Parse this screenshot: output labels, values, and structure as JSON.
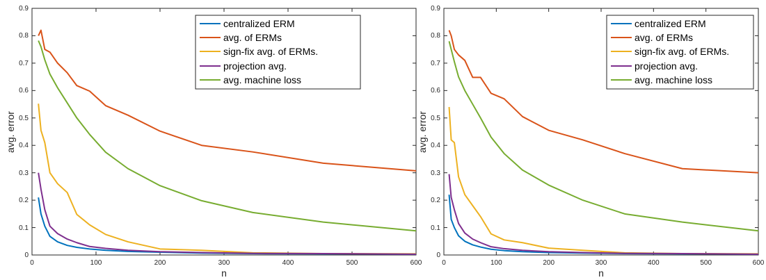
{
  "colors": {
    "axis": "#262626",
    "centralized_erm": "#0072BD",
    "avg_of_erms": "#D95319",
    "sign_fix": "#EDB120",
    "projection": "#7E2F8E",
    "avg_machine_loss": "#77AC30"
  },
  "chart_data": [
    {
      "type": "line",
      "xlabel": "n",
      "ylabel": "avg. error",
      "xlim": [
        0,
        600
      ],
      "ylim": [
        0,
        0.9
      ],
      "xticks": [
        "0",
        "100",
        "200",
        "300",
        "400",
        "500",
        "600"
      ],
      "yticks": [
        "0",
        "0.1",
        "0.2",
        "0.3",
        "0.4",
        "0.5",
        "0.6",
        "0.7",
        "0.8",
        "0.9"
      ],
      "legend_position": "top-right",
      "grid": false,
      "series": [
        {
          "name": "centralized ERM",
          "color_key": "centralized_erm",
          "x": [
            10,
            14,
            20,
            28,
            40,
            55,
            70,
            90,
            115,
            150,
            200,
            265,
            345,
            455,
            600
          ],
          "y": [
            0.21,
            0.15,
            0.105,
            0.068,
            0.048,
            0.035,
            0.028,
            0.022,
            0.017,
            0.013,
            0.01,
            0.007,
            0.005,
            0.004,
            0.003
          ]
        },
        {
          "name": "avg. of ERMs",
          "color_key": "avg_of_erms",
          "x": [
            10,
            14,
            20,
            28,
            40,
            55,
            70,
            90,
            115,
            150,
            200,
            265,
            345,
            455,
            600
          ],
          "y": [
            0.8,
            0.82,
            0.75,
            0.74,
            0.7,
            0.665,
            0.618,
            0.598,
            0.545,
            0.51,
            0.452,
            0.4,
            0.376,
            0.335,
            0.307
          ]
        },
        {
          "name": "sign-fix avg. of ERMs.",
          "color_key": "sign_fix",
          "x": [
            10,
            14,
            20,
            28,
            40,
            55,
            70,
            90,
            115,
            150,
            200,
            265,
            345,
            455,
            600
          ],
          "y": [
            0.552,
            0.455,
            0.41,
            0.3,
            0.26,
            0.228,
            0.148,
            0.11,
            0.075,
            0.048,
            0.022,
            0.017,
            0.008,
            0.005,
            0.004
          ]
        },
        {
          "name": "projection avg.",
          "color_key": "projection",
          "x": [
            10,
            14,
            20,
            28,
            40,
            55,
            70,
            90,
            115,
            150,
            200,
            265,
            345,
            455,
            600
          ],
          "y": [
            0.3,
            0.24,
            0.165,
            0.105,
            0.078,
            0.058,
            0.045,
            0.031,
            0.024,
            0.017,
            0.012,
            0.009,
            0.006,
            0.005,
            0.003
          ]
        },
        {
          "name": "avg. machine loss",
          "color_key": "avg_machine_loss",
          "x": [
            10,
            14,
            20,
            28,
            40,
            55,
            70,
            90,
            115,
            150,
            200,
            265,
            345,
            455,
            600
          ],
          "y": [
            0.782,
            0.76,
            0.712,
            0.66,
            0.61,
            0.555,
            0.5,
            0.44,
            0.375,
            0.315,
            0.253,
            0.198,
            0.155,
            0.12,
            0.088
          ]
        }
      ]
    },
    {
      "type": "line",
      "xlabel": "n",
      "ylabel": "avg. error",
      "xlim": [
        0,
        600
      ],
      "ylim": [
        0,
        0.9
      ],
      "xticks": [
        "0",
        "100",
        "200",
        "300",
        "400",
        "500",
        "600"
      ],
      "yticks": [
        "0",
        "0.1",
        "0.2",
        "0.3",
        "0.4",
        "0.5",
        "0.6",
        "0.7",
        "0.8",
        "0.9"
      ],
      "legend_position": "top-right",
      "grid": false,
      "series": [
        {
          "name": "centralized ERM",
          "color_key": "centralized_erm",
          "x": [
            10,
            14,
            20,
            28,
            40,
            55,
            70,
            90,
            115,
            150,
            200,
            265,
            345,
            455,
            600
          ],
          "y": [
            0.22,
            0.13,
            0.1,
            0.07,
            0.05,
            0.037,
            0.029,
            0.021,
            0.016,
            0.012,
            0.009,
            0.007,
            0.005,
            0.004,
            0.003
          ]
        },
        {
          "name": "avg. of ERMs",
          "color_key": "avg_of_erms",
          "x": [
            10,
            14,
            20,
            28,
            40,
            55,
            70,
            90,
            115,
            150,
            200,
            265,
            345,
            455,
            600
          ],
          "y": [
            0.82,
            0.8,
            0.75,
            0.73,
            0.71,
            0.648,
            0.648,
            0.59,
            0.57,
            0.505,
            0.455,
            0.42,
            0.37,
            0.315,
            0.3
          ]
        },
        {
          "name": "sign-fix avg. of ERMs.",
          "color_key": "sign_fix",
          "x": [
            10,
            14,
            20,
            28,
            40,
            55,
            70,
            90,
            115,
            150,
            200,
            265,
            345,
            455,
            600
          ],
          "y": [
            0.54,
            0.42,
            0.41,
            0.285,
            0.22,
            0.18,
            0.14,
            0.077,
            0.055,
            0.045,
            0.025,
            0.017,
            0.008,
            0.005,
            0.004
          ]
        },
        {
          "name": "projection avg.",
          "color_key": "projection",
          "x": [
            10,
            14,
            20,
            28,
            40,
            55,
            70,
            90,
            115,
            150,
            200,
            265,
            345,
            455,
            600
          ],
          "y": [
            0.295,
            0.21,
            0.165,
            0.115,
            0.08,
            0.058,
            0.045,
            0.03,
            0.023,
            0.017,
            0.012,
            0.009,
            0.006,
            0.005,
            0.003
          ]
        },
        {
          "name": "avg. machine loss",
          "color_key": "avg_machine_loss",
          "x": [
            10,
            14,
            20,
            28,
            40,
            55,
            70,
            90,
            115,
            150,
            200,
            265,
            345,
            455,
            600
          ],
          "y": [
            0.78,
            0.75,
            0.705,
            0.65,
            0.6,
            0.55,
            0.5,
            0.43,
            0.37,
            0.31,
            0.255,
            0.2,
            0.15,
            0.12,
            0.088
          ]
        }
      ]
    }
  ]
}
